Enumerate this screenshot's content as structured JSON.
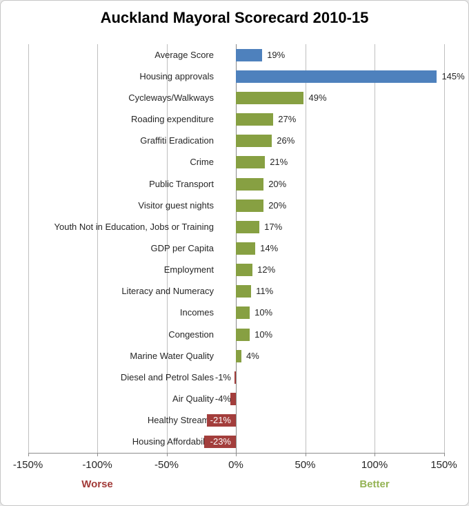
{
  "title": "Auckland Mayoral Scorecard 2010-15",
  "chart_data": {
    "type": "bar",
    "orientation": "horizontal",
    "title": "Auckland Mayoral Scorecard 2010-15",
    "xlim": [
      -150,
      150
    ],
    "grid": true,
    "x_ticks": [
      {
        "value": -150,
        "label": "-150%"
      },
      {
        "value": -100,
        "label": "-100%"
      },
      {
        "value": -50,
        "label": "-50%"
      },
      {
        "value": 0,
        "label": "0%"
      },
      {
        "value": 50,
        "label": "50%"
      },
      {
        "value": 100,
        "label": "100%"
      },
      {
        "value": 150,
        "label": "150%"
      }
    ],
    "bars": [
      {
        "category": "Average Score",
        "value": 19,
        "label": "19%",
        "color": "#4E81BD",
        "label_color": "#262626"
      },
      {
        "category": "Housing approvals",
        "value": 145,
        "label": "145%",
        "color": "#4E81BD",
        "label_color": "#262626"
      },
      {
        "category": "Cycleways/Walkways",
        "value": 49,
        "label": "49%",
        "color": "#87A042",
        "label_color": "#262626"
      },
      {
        "category": "Roading expenditure",
        "value": 27,
        "label": "27%",
        "color": "#87A042",
        "label_color": "#262626"
      },
      {
        "category": "Graffiti Eradication",
        "value": 26,
        "label": "26%",
        "color": "#87A042",
        "label_color": "#262626"
      },
      {
        "category": "Crime",
        "value": 21,
        "label": "21%",
        "color": "#87A042",
        "label_color": "#262626"
      },
      {
        "category": "Public Transport",
        "value": 20,
        "label": "20%",
        "color": "#87A042",
        "label_color": "#262626"
      },
      {
        "category": "Visitor guest nights",
        "value": 20,
        "label": "20%",
        "color": "#87A042",
        "label_color": "#262626"
      },
      {
        "category": "Youth Not in Education, Jobs or Training",
        "value": 17,
        "label": "17%",
        "color": "#87A042",
        "label_color": "#262626"
      },
      {
        "category": "GDP per Capita",
        "value": 14,
        "label": "14%",
        "color": "#87A042",
        "label_color": "#262626"
      },
      {
        "category": "Employment",
        "value": 12,
        "label": "12%",
        "color": "#87A042",
        "label_color": "#262626"
      },
      {
        "category": "Literacy and Numeracy",
        "value": 11,
        "label": "11%",
        "color": "#87A042",
        "label_color": "#262626"
      },
      {
        "category": "Incomes",
        "value": 10,
        "label": "10%",
        "color": "#87A042",
        "label_color": "#262626"
      },
      {
        "category": "Congestion",
        "value": 10,
        "label": "10%",
        "color": "#87A042",
        "label_color": "#262626"
      },
      {
        "category": "Marine Water Quality",
        "value": 4,
        "label": "4%",
        "color": "#87A042",
        "label_color": "#262626"
      },
      {
        "category": "Diesel and Petrol Sales",
        "value": -1,
        "label": "-1%",
        "color": "#A33E3C",
        "label_color": "#262626"
      },
      {
        "category": "Air Quality",
        "value": -4,
        "label": "-4%",
        "color": "#A33E3C",
        "label_color": "#262626"
      },
      {
        "category": "Healthy Streams",
        "value": -21,
        "label": "-21%",
        "color": "#A33E3C",
        "label_color": "#FFFFFF"
      },
      {
        "category": "Housing Affordability",
        "value": -23,
        "label": "-23%",
        "color": "#A33E3C",
        "label_color": "#FFFFFF"
      }
    ],
    "annotations": [
      {
        "text": "Worse",
        "anchor_value": -100,
        "color": "#A23B39"
      },
      {
        "text": "Better",
        "anchor_value": 100,
        "color": "#94B354"
      }
    ]
  },
  "colors": {
    "bar_blue": "#4E81BD",
    "bar_green": "#87A042",
    "bar_red": "#A33E3C",
    "gridline": "#BFBFBF",
    "zero_line": "#898989",
    "axis_line": "#8C8C8C",
    "text": "#262626",
    "background": "#FFFFFF"
  }
}
